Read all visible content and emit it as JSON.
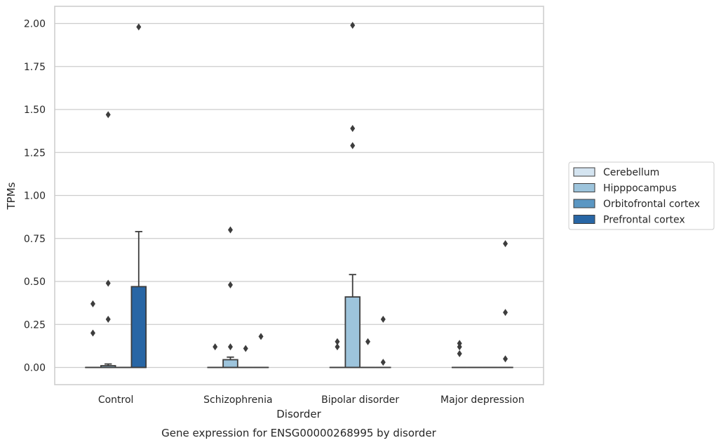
{
  "chart_data": {
    "type": "box",
    "title": "",
    "caption": "Gene expression for ENSG00000268995 by disorder",
    "xlabel": "Disorder",
    "ylabel": "TPMs",
    "ylim": [
      -0.1,
      2.1
    ],
    "yticks": [
      "0.00",
      "0.25",
      "0.50",
      "0.75",
      "1.00",
      "1.25",
      "1.50",
      "1.75",
      "2.00"
    ],
    "ytick_values": [
      0,
      0.25,
      0.5,
      0.75,
      1.0,
      1.25,
      1.5,
      1.75,
      2.0
    ],
    "categories": [
      "Control",
      "Schizophrenia",
      "Bipolar disorder",
      "Major depression"
    ],
    "grid": "horizontal",
    "legend_position": "right",
    "series": [
      {
        "name": "Cerebellum",
        "color": "#d4e4f0",
        "boxes": [
          {
            "q1": 0,
            "median": 0,
            "q3": 0,
            "whisker_low": 0,
            "whisker_high": 0,
            "outliers": [
              0.37,
              0.2
            ]
          },
          {
            "q1": 0,
            "median": 0,
            "q3": 0,
            "whisker_low": 0,
            "whisker_high": 0,
            "outliers": [
              0.12
            ]
          },
          {
            "q1": 0,
            "median": 0,
            "q3": 0,
            "whisker_low": 0,
            "whisker_high": 0,
            "outliers": [
              0.15,
              0.12
            ]
          },
          {
            "q1": 0,
            "median": 0,
            "q3": 0,
            "whisker_low": 0,
            "whisker_high": 0,
            "outliers": [
              0.14,
              0.12,
              0.08
            ]
          }
        ]
      },
      {
        "name": "Hipppocampus",
        "color": "#9dc4dc",
        "boxes": [
          {
            "q1": 0,
            "median": 0,
            "q3": 0.01,
            "whisker_low": 0,
            "whisker_high": 0.02,
            "outliers": [
              1.47,
              0.49,
              0.28
            ]
          },
          {
            "q1": 0,
            "median": 0,
            "q3": 0.045,
            "whisker_low": 0,
            "whisker_high": 0.06,
            "outliers": [
              0.8,
              0.48,
              0.12
            ]
          },
          {
            "q1": 0,
            "median": 0,
            "q3": 0.41,
            "whisker_low": 0,
            "whisker_high": 0.54,
            "outliers": [
              1.99,
              1.39,
              1.29
            ]
          },
          {
            "q1": 0,
            "median": 0,
            "q3": 0,
            "whisker_low": 0,
            "whisker_high": 0,
            "outliers": []
          }
        ]
      },
      {
        "name": "Orbitofrontal cortex",
        "color": "#5b97c3",
        "boxes": [
          {
            "q1": 0,
            "median": 0,
            "q3": 0,
            "whisker_low": 0,
            "whisker_high": 0,
            "outliers": []
          },
          {
            "q1": 0,
            "median": 0,
            "q3": 0,
            "whisker_low": 0,
            "whisker_high": 0,
            "outliers": [
              0.11
            ]
          },
          {
            "q1": 0,
            "median": 0,
            "q3": 0,
            "whisker_low": 0,
            "whisker_high": 0,
            "outliers": [
              0.15
            ]
          },
          {
            "q1": 0,
            "median": 0,
            "q3": 0,
            "whisker_low": 0,
            "whisker_high": 0,
            "outliers": []
          }
        ]
      },
      {
        "name": "Prefrontal cortex",
        "color": "#2866a5",
        "boxes": [
          {
            "q1": 0,
            "median": 0,
            "q3": 0.47,
            "whisker_low": 0,
            "whisker_high": 0.79,
            "outliers": [
              1.98
            ]
          },
          {
            "q1": 0,
            "median": 0,
            "q3": 0,
            "whisker_low": 0,
            "whisker_high": 0,
            "outliers": [
              0.18
            ]
          },
          {
            "q1": 0,
            "median": 0,
            "q3": 0,
            "whisker_low": 0,
            "whisker_high": 0,
            "outliers": [
              0.28,
              0.03
            ]
          },
          {
            "q1": 0,
            "median": 0,
            "q3": 0,
            "whisker_low": 0,
            "whisker_high": 0,
            "outliers": [
              0.72,
              0.32,
              0.05
            ]
          }
        ]
      }
    ]
  }
}
